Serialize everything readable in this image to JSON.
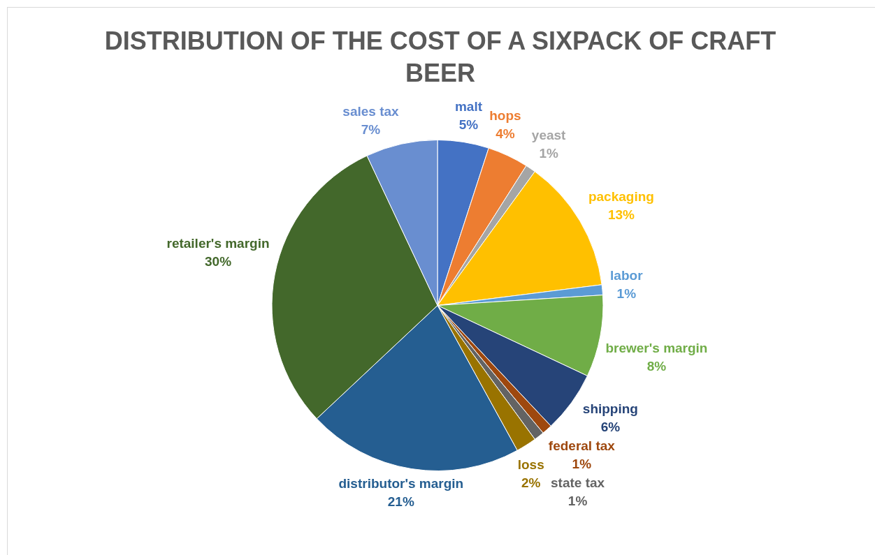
{
  "chart_data": {
    "type": "pie",
    "title": "DISTRIBUTION OF THE COST OF A SIXPACK OF CRAFT BEER",
    "categories": [
      "malt",
      "hops",
      "yeast",
      "packaging",
      "labor",
      "brewer's margin",
      "shipping",
      "federal tax",
      "state tax",
      "loss",
      "distributor's margin",
      "retailer's margin",
      "sales tax"
    ],
    "values": [
      5,
      4,
      1,
      13,
      1,
      8,
      6,
      1,
      1,
      2,
      21,
      30,
      7
    ],
    "colors": [
      "#4472c4",
      "#ed7d31",
      "#a5a5a5",
      "#ffc000",
      "#5b9bd5",
      "#70ad47",
      "#264478",
      "#9e480e",
      "#636363",
      "#997300",
      "#255e91",
      "#43682b",
      "#698ed0"
    ],
    "value_labels": [
      "5%",
      "4%",
      "1%",
      "13%",
      "1%",
      "8%",
      "6%",
      "1%",
      "1%",
      "2%",
      "21%",
      "30%",
      "7%"
    ],
    "legend": false
  }
}
